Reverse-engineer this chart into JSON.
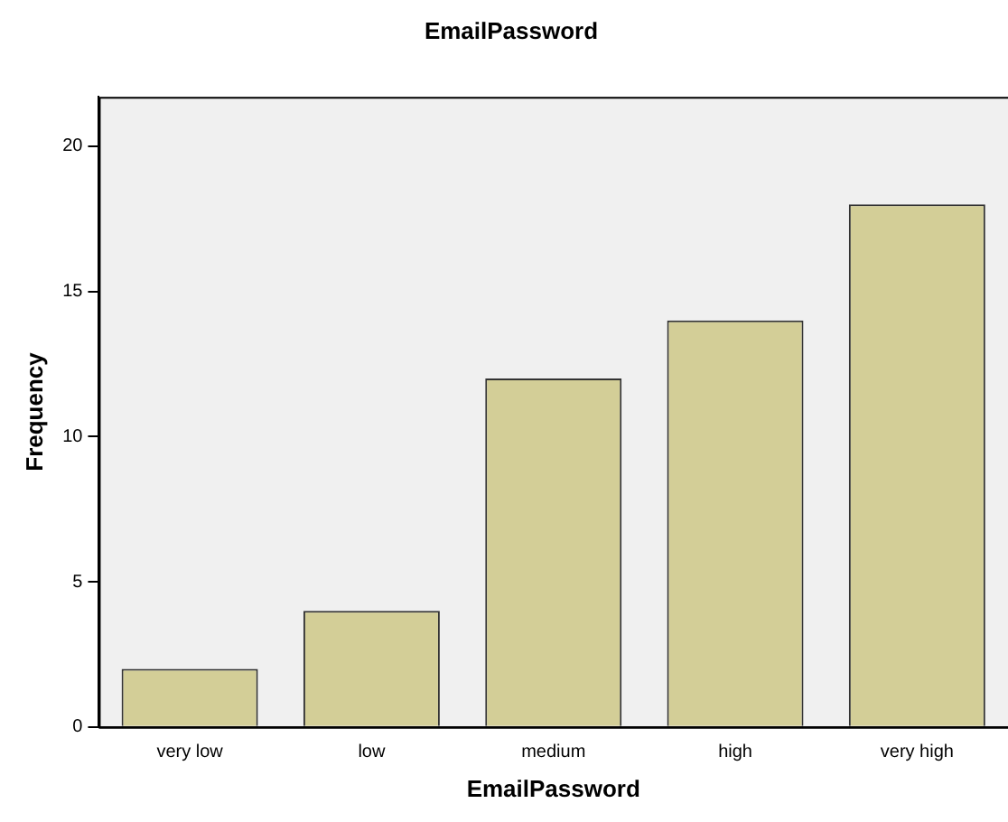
{
  "chart_data": {
    "type": "bar",
    "title": "EmailPassword",
    "xlabel": "EmailPassword",
    "ylabel": "Frequency",
    "categories": [
      "very low",
      "low",
      "medium",
      "high",
      "very high"
    ],
    "values": [
      2,
      4,
      12,
      14,
      18
    ],
    "color": "#d3ce97",
    "ylim": [
      0,
      21.7
    ],
    "yticks": [
      0,
      5,
      10,
      15,
      20
    ],
    "grid": false,
    "legend": false
  }
}
